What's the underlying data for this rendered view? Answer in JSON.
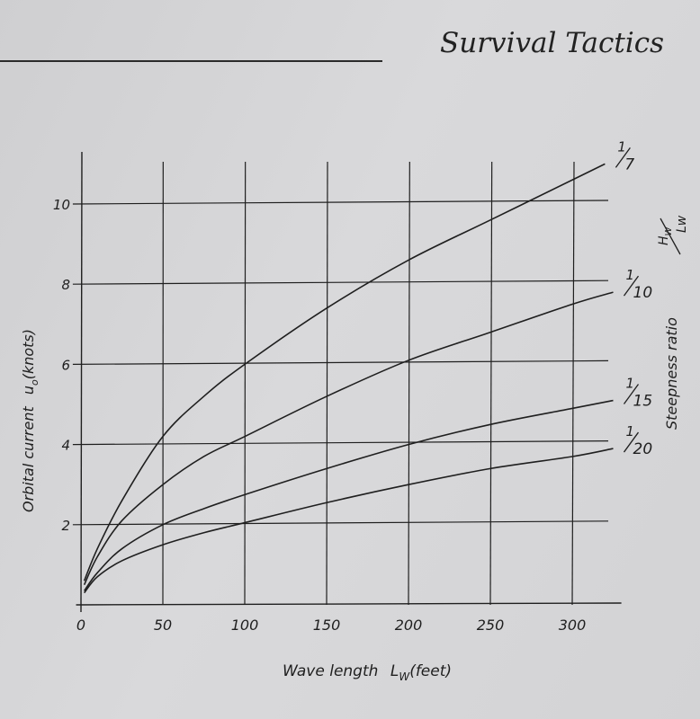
{
  "page": {
    "running_head": "Survival Tactics"
  },
  "chart_data": {
    "type": "line",
    "xlabel_main": "Wave length",
    "xlabel_symbol": "L",
    "xlabel_sub": "W",
    "xlabel_unit": "(feet)",
    "ylabel_main": "Orbital current",
    "ylabel_symbol": "u",
    "ylabel_sub": "o",
    "ylabel_unit": "(knots)",
    "right_label": "Steepness ratio",
    "right_label_num": "H",
    "right_label_num_sub": "W",
    "right_label_den": "Lw",
    "x_ticks": [
      0,
      50,
      100,
      150,
      200,
      250,
      300
    ],
    "y_ticks": [
      2,
      4,
      6,
      8,
      10
    ],
    "xlim": [
      0,
      330
    ],
    "ylim": [
      0,
      11
    ],
    "grid": true,
    "series": [
      {
        "name": "1/7",
        "num": "1",
        "den": "7",
        "x": [
          2,
          10,
          25,
          50,
          75,
          100,
          150,
          200,
          250,
          300,
          320
        ],
        "y": [
          0.6,
          1.4,
          2.6,
          4.2,
          5.2,
          6.0,
          7.4,
          8.6,
          9.6,
          10.6,
          11.0
        ]
      },
      {
        "name": "1/10",
        "num": "1",
        "den": "10",
        "x": [
          2,
          10,
          25,
          50,
          75,
          100,
          150,
          200,
          250,
          300,
          325
        ],
        "y": [
          0.5,
          1.2,
          2.1,
          3.0,
          3.7,
          4.2,
          5.2,
          6.1,
          6.8,
          7.5,
          7.8
        ]
      },
      {
        "name": "1/15",
        "num": "1",
        "den": "15",
        "x": [
          2,
          10,
          25,
          50,
          75,
          100,
          150,
          200,
          250,
          300,
          325
        ],
        "y": [
          0.35,
          0.8,
          1.4,
          2.0,
          2.4,
          2.75,
          3.4,
          4.0,
          4.5,
          4.9,
          5.1
        ]
      },
      {
        "name": "1/20",
        "num": "1",
        "den": "20",
        "x": [
          2,
          10,
          25,
          50,
          75,
          100,
          150,
          200,
          250,
          300,
          325
        ],
        "y": [
          0.3,
          0.7,
          1.1,
          1.5,
          1.8,
          2.05,
          2.55,
          3.0,
          3.4,
          3.7,
          3.9
        ]
      }
    ]
  }
}
